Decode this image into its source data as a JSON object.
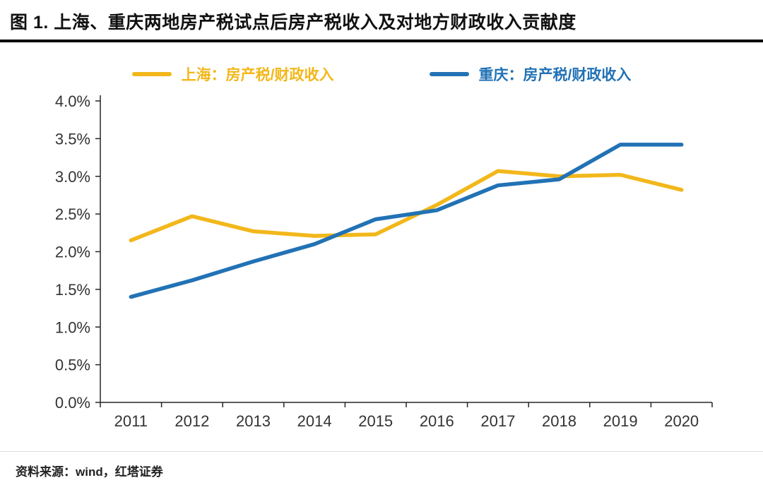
{
  "title": "图 1. 上海、重庆两地房产税试点后房产税收入及对地方财政收入贡献度",
  "footer": {
    "source": "资料来源：wind，红塔证券"
  },
  "colors": {
    "shanghai_line": "#F2B71A",
    "chongqing_line": "#2272B5",
    "axis": "#262626",
    "title_rule": "#000000"
  },
  "chart_data": {
    "type": "line",
    "title": "上海、重庆两地房产税试点后房产税收入及对地方财政收入贡献度",
    "categories": [
      "2011",
      "2012",
      "2013",
      "2014",
      "2015",
      "2016",
      "2017",
      "2018",
      "2019",
      "2020"
    ],
    "series": [
      {
        "name": "上海：房产税/财政收入",
        "color": "#F2B71A",
        "values": [
          2.15,
          2.47,
          2.27,
          2.21,
          2.23,
          2.62,
          3.07,
          3.0,
          3.02,
          2.82
        ]
      },
      {
        "name": "重庆：房产税/财政收入",
        "color": "#2272B5",
        "values": [
          1.4,
          1.62,
          1.87,
          2.1,
          2.43,
          2.55,
          2.88,
          2.96,
          3.42,
          3.42
        ]
      }
    ],
    "xlabel": "",
    "ylabel": "",
    "ylim": [
      0,
      4
    ],
    "ytick_step": 0.5,
    "ytick_format": "percent_1dp",
    "grid": false,
    "legend_position": "top"
  }
}
